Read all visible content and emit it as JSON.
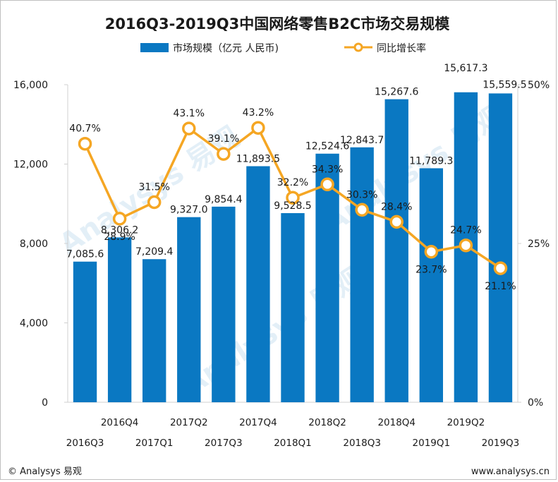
{
  "footer": {
    "left": "© Analysys 易观",
    "right": "www.analysys.cn"
  },
  "watermark": {
    "text": "Analysys 易观"
  },
  "chart_data": {
    "type": "bar",
    "title": "2016Q3-2019Q3中国网络零售B2C市场交易规模",
    "categories": [
      "2016Q3",
      "2016Q4",
      "2017Q1",
      "2017Q2",
      "2017Q3",
      "2017Q4",
      "2018Q1",
      "2018Q2",
      "2018Q3",
      "2018Q4",
      "2019Q1",
      "2019Q2",
      "2019Q3"
    ],
    "series": [
      {
        "name": "市场规模（亿元 人民币)",
        "type": "bar",
        "axis": "left",
        "color": "#0a78c2",
        "values": [
          7085.6,
          8306.2,
          7209.4,
          9327.0,
          9854.4,
          11893.5,
          9528.5,
          12524.6,
          12843.7,
          15267.6,
          11789.3,
          15617.3,
          15559.5
        ],
        "labels": [
          "7,085.6",
          "8,306.2",
          "7,209.4",
          "9,327.0",
          "9,854.4",
          "11,893.5",
          "9,528.5",
          "12,524.6",
          "12,843.7",
          "15,267.6",
          "11,789.3",
          "15,617.3",
          "15,559.5"
        ]
      },
      {
        "name": "同比增长率",
        "type": "line",
        "axis": "right",
        "color": "#f5a623",
        "values": [
          40.7,
          28.9,
          31.5,
          43.1,
          39.1,
          43.2,
          32.2,
          34.3,
          30.3,
          28.4,
          23.7,
          24.7,
          21.1
        ],
        "labels": [
          "40.7%",
          "28.9%",
          "31.5%",
          "43.1%",
          "39.1%",
          "43.2%",
          "32.2%",
          "34.3%",
          "30.3%",
          "28.4%",
          "23.7%",
          "24.7%",
          "21.1%"
        ]
      }
    ],
    "y_left": {
      "ylim": [
        0,
        16000
      ],
      "ticks": [
        0,
        4000,
        8000,
        12000,
        16000
      ],
      "tick_labels": [
        "0",
        "4,000",
        "8,000",
        "12,000",
        "16,000"
      ]
    },
    "y_right": {
      "ylim": [
        0,
        50
      ],
      "ticks": [
        0,
        25,
        50
      ],
      "tick_labels": [
        "0%",
        "25%",
        "50%"
      ]
    },
    "grid": false,
    "legend_position": "top-center"
  }
}
